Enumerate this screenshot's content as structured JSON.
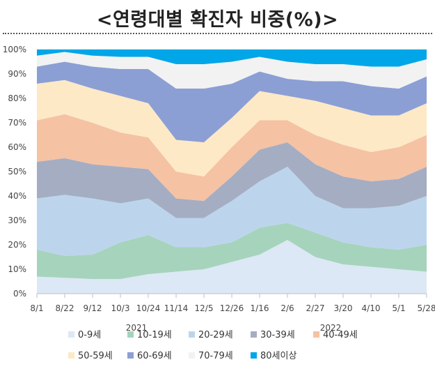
{
  "title": "<연령대별 확진자 비중(%)>",
  "chart_data": {
    "type": "area",
    "stacked": true,
    "percent": true,
    "title": "<연령대별 확진자 비중(%)>",
    "ylim": [
      0,
      100
    ],
    "y_ticks": [
      "0%",
      "10%",
      "20%",
      "30%",
      "40%",
      "50%",
      "60%",
      "70%",
      "80%",
      "90%",
      "100%"
    ],
    "x": [
      "8/1",
      "8/22",
      "9/12",
      "10/3",
      "10/24",
      "11/14",
      "12/5",
      "12/26",
      "1/16",
      "2/6",
      "2/27",
      "3/20",
      "4/10",
      "5/1",
      "5/28"
    ],
    "year_labels": [
      "2021",
      "2022"
    ],
    "grid": "horizontal",
    "legend_position": "bottom",
    "series": [
      {
        "name": "0-9세",
        "color": "#dce8f5",
        "values": [
          7,
          6.5,
          6,
          6,
          8,
          9,
          10,
          13,
          16,
          22,
          15,
          12,
          11,
          10,
          9
        ]
      },
      {
        "name": "10-19세",
        "color": "#a6d3bc",
        "values": [
          11,
          9,
          10,
          15,
          16,
          10,
          9,
          8,
          11,
          7,
          10,
          9,
          8,
          8,
          11
        ]
      },
      {
        "name": "20-29세",
        "color": "#bcd5ec",
        "values": [
          21,
          25,
          23,
          16,
          15,
          12,
          12,
          17,
          19,
          23,
          15,
          14,
          16,
          18,
          20
        ]
      },
      {
        "name": "30-39세",
        "color": "#a5adc2",
        "values": [
          15,
          15,
          14,
          15,
          12,
          8,
          7,
          10,
          13,
          10,
          13,
          13,
          11,
          11,
          12
        ]
      },
      {
        "name": "40-49세",
        "color": "#f5c2a4",
        "values": [
          17,
          18,
          17,
          14,
          13,
          11,
          10,
          12,
          12,
          9,
          12,
          13,
          12,
          13,
          13
        ]
      },
      {
        "name": "50-59세",
        "color": "#fde9c6",
        "values": [
          15,
          14,
          14,
          15,
          14,
          13,
          14,
          12,
          12,
          10,
          14,
          15,
          15,
          13,
          13
        ]
      },
      {
        "name": "60-69세",
        "color": "#8c9fd4",
        "values": [
          7,
          7.5,
          9,
          11,
          14,
          21,
          22,
          14,
          8,
          7,
          8,
          11,
          12,
          11,
          11
        ]
      },
      {
        "name": "70-79세",
        "color": "#f2f2f2",
        "values": [
          4.5,
          4,
          4.5,
          5,
          5,
          10,
          10,
          9,
          6,
          7,
          7,
          7,
          8,
          9,
          7
        ]
      },
      {
        "name": "80세이상",
        "color": "#00a6e8",
        "values": [
          2.5,
          1,
          2.5,
          3,
          3,
          6,
          6,
          5,
          3,
          5,
          6,
          6,
          7,
          7,
          4
        ]
      }
    ]
  }
}
